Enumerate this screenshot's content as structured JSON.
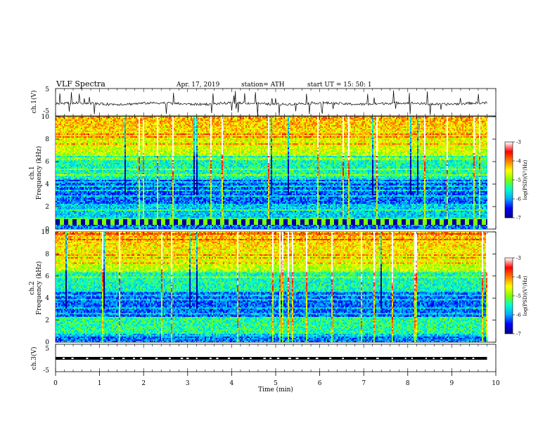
{
  "header": {
    "title": "VLF  Spectra",
    "date": "Apr. 17, 2019",
    "station": "station= ATH",
    "start": "start  UT  =    15: 50: 1"
  },
  "chart_data": [
    {
      "type": "line",
      "panel": "ch1-waveform",
      "ylabel": "ch.1(V)",
      "ylim": [
        -5,
        5
      ],
      "yticks": [
        "5",
        "-5"
      ],
      "xlim": [
        0,
        10
      ],
      "data_extent_min": [
        0,
        9.8
      ],
      "series": [
        {
          "values_note": "",
          "baseline": -0.5,
          "noise": "spiky"
        }
      ]
    },
    {
      "type": "heatmap",
      "panel": "ch1-spectrogram",
      "ylabel": "ch.1\nFrequency (kHz)",
      "ylabel_lines": [
        "ch.1",
        "Frequency  (kHz)"
      ],
      "ylim": [
        0,
        10
      ],
      "yticks": [
        "0",
        "2",
        "4",
        "6",
        "8",
        "10"
      ],
      "xlim": [
        0,
        10
      ],
      "colorbar": {
        "label": "log(PSD)(V²/Hz)",
        "range": [
          -7,
          -3
        ],
        "ticks": [
          "-3",
          "-4",
          "-5",
          "-6",
          "-7"
        ]
      }
    },
    {
      "type": "heatmap",
      "panel": "ch2-spectrogram",
      "ylabel_lines": [
        "ch.2",
        "Frequency  (kHz)"
      ],
      "ylim": [
        0,
        10
      ],
      "yticks": [
        "0",
        "2",
        "4",
        "6",
        "8",
        "10"
      ],
      "xlim": [
        0,
        10
      ],
      "colorbar": {
        "label": "log(PSD)(V²/Hz)",
        "range": [
          -7,
          -3
        ],
        "ticks": [
          "-3",
          "-4",
          "-5",
          "-6",
          "-7"
        ]
      }
    },
    {
      "type": "line",
      "panel": "ch3-waveform",
      "ylabel": "ch.3(V)",
      "ylim": [
        -5,
        5
      ],
      "yticks": [
        "5",
        "-5"
      ],
      "xlim": [
        0,
        10
      ],
      "series": [
        {
          "baseline": 0,
          "style": "dashed-block"
        }
      ]
    }
  ],
  "xaxis": {
    "label": "Time  (min)",
    "ticks": [
      "0",
      "1",
      "2",
      "3",
      "4",
      "5",
      "6",
      "7",
      "8",
      "9",
      "10"
    ]
  },
  "colors": {
    "colormap": [
      "#00008f",
      "#0000ff",
      "#00aaff",
      "#00ffcc",
      "#7fff00",
      "#ffff00",
      "#ff8000",
      "#ff0000",
      "#ffffff"
    ]
  }
}
